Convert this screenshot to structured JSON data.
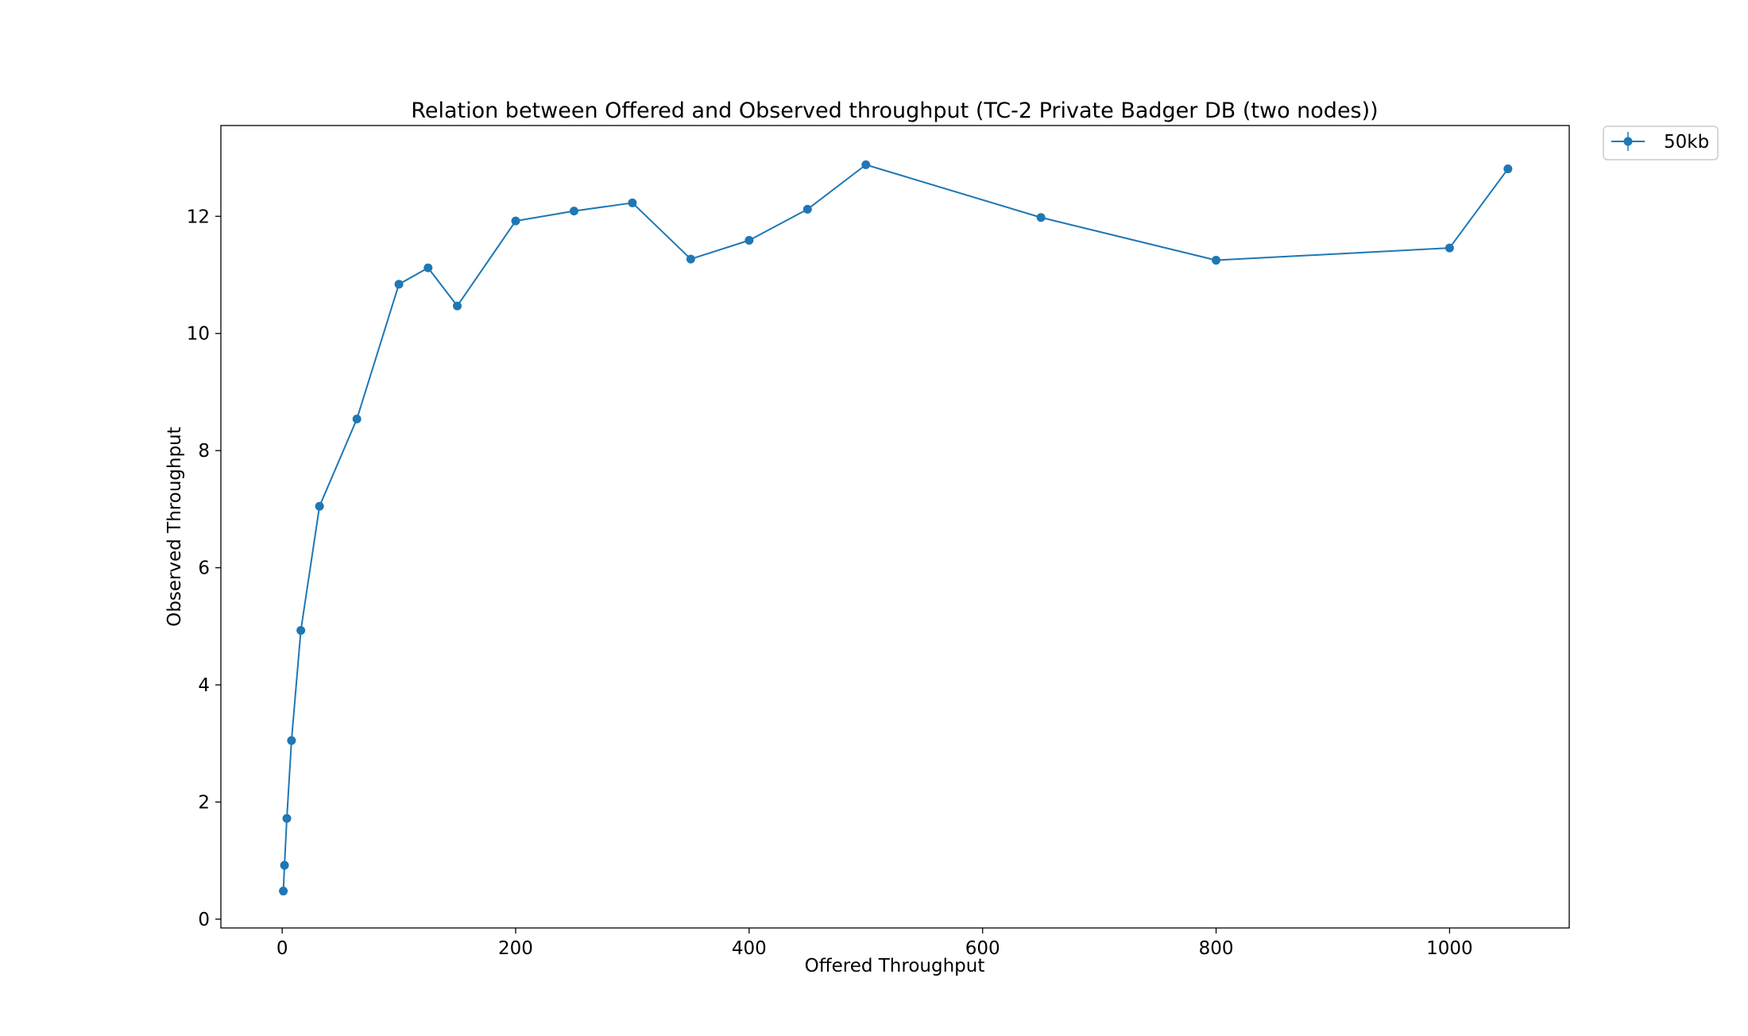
{
  "chart_data": {
    "type": "line",
    "title": "Relation between Offered and Observed throughput (TC-2  Private Badger DB (two nodes))",
    "xlabel": "Offered Throughput",
    "ylabel": "Observed Throughput",
    "xlim": [
      -52.5,
      1102.5
    ],
    "ylim": [
      -0.15,
      13.55
    ],
    "xticks": [
      0,
      200,
      400,
      600,
      800,
      1000
    ],
    "yticks": [
      0,
      2,
      4,
      6,
      8,
      10,
      12
    ],
    "grid": false,
    "legend_position": "outside-top-right",
    "series": [
      {
        "name": "50kb",
        "color": "#1f77b4",
        "marker": "circle",
        "x": [
          1,
          2,
          4,
          8,
          16,
          32,
          64,
          100,
          125,
          150,
          200,
          250,
          300,
          350,
          400,
          450,
          500,
          650,
          800,
          1000,
          1050
        ],
        "y": [
          0.48,
          0.92,
          1.72,
          3.05,
          4.93,
          7.05,
          8.54,
          10.84,
          11.12,
          10.47,
          11.92,
          12.09,
          12.23,
          11.27,
          11.59,
          12.12,
          12.88,
          11.98,
          11.25,
          11.46,
          12.81
        ]
      }
    ]
  }
}
